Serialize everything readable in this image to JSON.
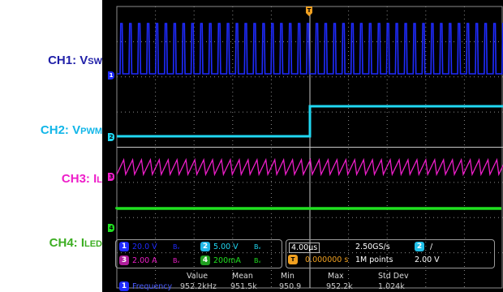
{
  "labels": {
    "ch1": {
      "name": "CH1: V",
      "sub": "SW"
    },
    "ch2": {
      "name": "CH2: V",
      "sub": "PWM"
    },
    "ch3": {
      "name": "CH3: I",
      "sub": "L"
    },
    "ch4": {
      "name": "CH4: I",
      "sub": "LED"
    }
  },
  "colors": {
    "ch1": "#1f2bff",
    "ch2": "#20d8f2",
    "ch3": "#ee1ec9",
    "ch4": "#20e020",
    "grid": "#8c8c8c",
    "trigger": "#f0a020"
  },
  "markers": {
    "ch1": "1",
    "ch2": "2",
    "ch3": "3",
    "ch4": "4",
    "trigger": "T"
  },
  "channels": [
    {
      "num": "1",
      "scale": "20.0 V",
      "bw": "Bᵥ",
      "color": "#1f2bff"
    },
    {
      "num": "2",
      "scale": "5.00 V",
      "bw": "Bᵥ",
      "color": "#20b8e8"
    },
    {
      "num": "3",
      "scale": "2.00 A",
      "bw": "Bᵥ",
      "color": "#b01e9c"
    },
    {
      "num": "4",
      "scale": "200mA",
      "bw": "Bᵥ",
      "color": "#20a020"
    }
  ],
  "timebase": {
    "horizontal": "4.00µs",
    "sample_rate": "2.50GS/s",
    "trigger_offset": "0.000000 s",
    "record_length": "1M points",
    "trigger_channel": "2",
    "trigger_slope": "∕",
    "trigger_level": "2.00 V"
  },
  "measurements": {
    "headers": [
      "Value",
      "Mean",
      "Min",
      "Max",
      "Std Dev"
    ],
    "rows": [
      {
        "channel": "1",
        "name": "Frequency",
        "value": "952.2kHz",
        "mean": "951.5k",
        "min": "950.9",
        "max": "952.2k",
        "std": "1.024k"
      }
    ]
  }
}
